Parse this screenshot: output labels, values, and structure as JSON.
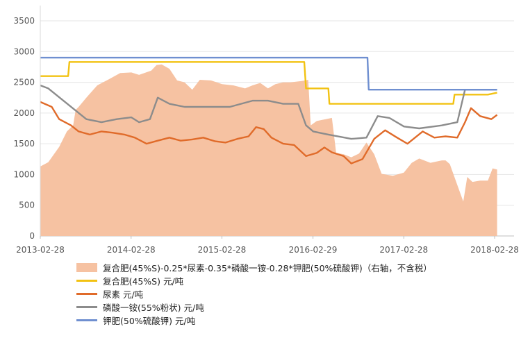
{
  "chart_data": {
    "type": "line",
    "title": "",
    "xlabel": "",
    "ylabel": "",
    "ylim": [
      0,
      3500
    ],
    "yticks": [
      0,
      500,
      1000,
      1500,
      2000,
      2500,
      3000,
      3500
    ],
    "xticks": [
      "2013-02-28",
      "2014-02-28",
      "2015-02-28",
      "2016-02-29",
      "2017-02-28",
      "2018-02-28"
    ],
    "grid": "horizontal",
    "legend_position": "bottom",
    "series": [
      {
        "name": "复合肥(45%S)-0.25*尿素-0.35*磷酸一铵-0.28*钾肥(50%硫酸钾)（右轴，不含税）",
        "type": "area",
        "color": "#f6c2a2",
        "points": [
          [
            "2013-02-28",
            1130
          ],
          [
            "2013-04-01",
            1200
          ],
          [
            "2013-05-15",
            1450
          ],
          [
            "2013-06-15",
            1700
          ],
          [
            "2013-07-10",
            1800
          ],
          [
            "2013-07-20",
            2050
          ],
          [
            "2013-08-01",
            2100
          ],
          [
            "2013-09-01",
            2250
          ],
          [
            "2013-10-15",
            2450
          ],
          [
            "2013-12-01",
            2550
          ],
          [
            "2014-01-15",
            2650
          ],
          [
            "2014-03-01",
            2660
          ],
          [
            "2014-04-01",
            2620
          ],
          [
            "2014-05-20",
            2690
          ],
          [
            "2014-06-10",
            2780
          ],
          [
            "2014-07-01",
            2790
          ],
          [
            "2014-08-01",
            2720
          ],
          [
            "2014-09-01",
            2530
          ],
          [
            "2014-10-01",
            2500
          ],
          [
            "2014-11-01",
            2380
          ],
          [
            "2014-12-01",
            2540
          ],
          [
            "2015-01-15",
            2530
          ],
          [
            "2015-03-01",
            2470
          ],
          [
            "2015-04-15",
            2450
          ],
          [
            "2015-06-01",
            2400
          ],
          [
            "2015-07-01",
            2450
          ],
          [
            "2015-08-01",
            2490
          ],
          [
            "2015-09-01",
            2400
          ],
          [
            "2015-10-01",
            2470
          ],
          [
            "2015-11-01",
            2500
          ],
          [
            "2015-12-01",
            2500
          ],
          [
            "2016-01-15",
            2520
          ],
          [
            "2016-02-10",
            2540
          ],
          [
            "2016-02-20",
            1800
          ],
          [
            "2016-03-15",
            1870
          ],
          [
            "2016-05-15",
            1920
          ],
          [
            "2016-06-01",
            1350
          ],
          [
            "2016-07-01",
            1330
          ],
          [
            "2016-08-01",
            1280
          ],
          [
            "2016-09-01",
            1340
          ],
          [
            "2016-10-01",
            1520
          ],
          [
            "2016-11-01",
            1330
          ],
          [
            "2016-12-01",
            1010
          ],
          [
            "2017-01-15",
            980
          ],
          [
            "2017-02-28",
            1030
          ],
          [
            "2017-04-01",
            1190
          ],
          [
            "2017-05-01",
            1260
          ],
          [
            "2017-06-15",
            1190
          ],
          [
            "2017-08-01",
            1230
          ],
          [
            "2017-08-15",
            1230
          ],
          [
            "2017-09-01",
            1170
          ],
          [
            "2017-10-01",
            830
          ],
          [
            "2017-10-25",
            560
          ],
          [
            "2017-11-10",
            960
          ],
          [
            "2017-12-01",
            880
          ],
          [
            "2018-01-01",
            900
          ],
          [
            "2018-02-01",
            900
          ],
          [
            "2018-02-20",
            1100
          ],
          [
            "2018-03-10",
            1080
          ]
        ]
      },
      {
        "name": "复合肥(45%S) 元/吨",
        "type": "line",
        "color": "#f2c212",
        "points": [
          [
            "2013-02-28",
            2600
          ],
          [
            "2013-06-20",
            2600
          ],
          [
            "2013-06-25",
            2830
          ],
          [
            "2016-01-25",
            2830
          ],
          [
            "2016-02-01",
            2400
          ],
          [
            "2016-05-01",
            2400
          ],
          [
            "2016-05-05",
            2150
          ],
          [
            "2017-09-15",
            2150
          ],
          [
            "2017-09-20",
            2300
          ],
          [
            "2018-02-01",
            2300
          ],
          [
            "2018-03-10",
            2330
          ]
        ]
      },
      {
        "name": "尿素 元/吨",
        "type": "line",
        "color": "#e06b2a",
        "points": [
          [
            "2013-02-28",
            2180
          ],
          [
            "2013-04-15",
            2100
          ],
          [
            "2013-05-15",
            1900
          ],
          [
            "2013-07-01",
            1800
          ],
          [
            "2013-08-01",
            1700
          ],
          [
            "2013-09-15",
            1650
          ],
          [
            "2013-11-01",
            1700
          ],
          [
            "2013-12-15",
            1680
          ],
          [
            "2014-02-01",
            1650
          ],
          [
            "2014-03-15",
            1600
          ],
          [
            "2014-05-01",
            1500
          ],
          [
            "2014-06-15",
            1550
          ],
          [
            "2014-08-01",
            1600
          ],
          [
            "2014-09-15",
            1550
          ],
          [
            "2014-11-01",
            1570
          ],
          [
            "2014-12-15",
            1600
          ],
          [
            "2015-02-01",
            1540
          ],
          [
            "2015-03-15",
            1520
          ],
          [
            "2015-05-01",
            1580
          ],
          [
            "2015-06-15",
            1620
          ],
          [
            "2015-07-15",
            1770
          ],
          [
            "2015-08-15",
            1740
          ],
          [
            "2015-09-15",
            1600
          ],
          [
            "2015-11-01",
            1500
          ],
          [
            "2015-12-15",
            1480
          ],
          [
            "2016-02-01",
            1300
          ],
          [
            "2016-03-15",
            1350
          ],
          [
            "2016-04-15",
            1440
          ],
          [
            "2016-05-15",
            1360
          ],
          [
            "2016-07-01",
            1300
          ],
          [
            "2016-08-01",
            1180
          ],
          [
            "2016-09-15",
            1250
          ],
          [
            "2016-11-01",
            1580
          ],
          [
            "2016-12-15",
            1720
          ],
          [
            "2017-02-01",
            1600
          ],
          [
            "2017-03-15",
            1500
          ],
          [
            "2017-05-15",
            1700
          ],
          [
            "2017-07-01",
            1600
          ],
          [
            "2017-08-15",
            1620
          ],
          [
            "2017-10-01",
            1600
          ],
          [
            "2017-11-01",
            1850
          ],
          [
            "2017-11-25",
            2080
          ],
          [
            "2018-01-01",
            1950
          ],
          [
            "2018-02-15",
            1900
          ],
          [
            "2018-03-10",
            1970
          ]
        ]
      },
      {
        "name": "磷酸一铵(55%粉状) 元/吨",
        "type": "line",
        "color": "#8c8c8c",
        "points": [
          [
            "2013-02-28",
            2450
          ],
          [
            "2013-04-01",
            2400
          ],
          [
            "2013-06-01",
            2200
          ],
          [
            "2013-09-01",
            1900
          ],
          [
            "2013-11-01",
            1850
          ],
          [
            "2014-01-01",
            1900
          ],
          [
            "2014-03-01",
            1930
          ],
          [
            "2014-04-01",
            1850
          ],
          [
            "2014-05-15",
            1900
          ],
          [
            "2014-06-15",
            2250
          ],
          [
            "2014-08-01",
            2150
          ],
          [
            "2014-10-01",
            2100
          ],
          [
            "2015-01-01",
            2100
          ],
          [
            "2015-04-01",
            2100
          ],
          [
            "2015-07-01",
            2200
          ],
          [
            "2015-09-01",
            2200
          ],
          [
            "2015-11-01",
            2150
          ],
          [
            "2016-01-01",
            2150
          ],
          [
            "2016-02-01",
            1800
          ],
          [
            "2016-03-01",
            1700
          ],
          [
            "2016-05-01",
            1650
          ],
          [
            "2016-08-01",
            1580
          ],
          [
            "2016-10-01",
            1600
          ],
          [
            "2016-11-15",
            1950
          ],
          [
            "2017-01-01",
            1920
          ],
          [
            "2017-03-01",
            1780
          ],
          [
            "2017-05-01",
            1750
          ],
          [
            "2017-08-01",
            1800
          ],
          [
            "2017-10-01",
            1850
          ],
          [
            "2017-11-01",
            2380
          ],
          [
            "2018-01-01",
            2380
          ],
          [
            "2018-03-10",
            2380
          ]
        ]
      },
      {
        "name": "钾肥(50%硫酸钾) 元/吨",
        "type": "line",
        "color": "#6f8fd0",
        "points": [
          [
            "2013-02-28",
            2900
          ],
          [
            "2016-10-05",
            2900
          ],
          [
            "2016-10-10",
            2380
          ],
          [
            "2018-03-10",
            2380
          ]
        ]
      }
    ]
  }
}
